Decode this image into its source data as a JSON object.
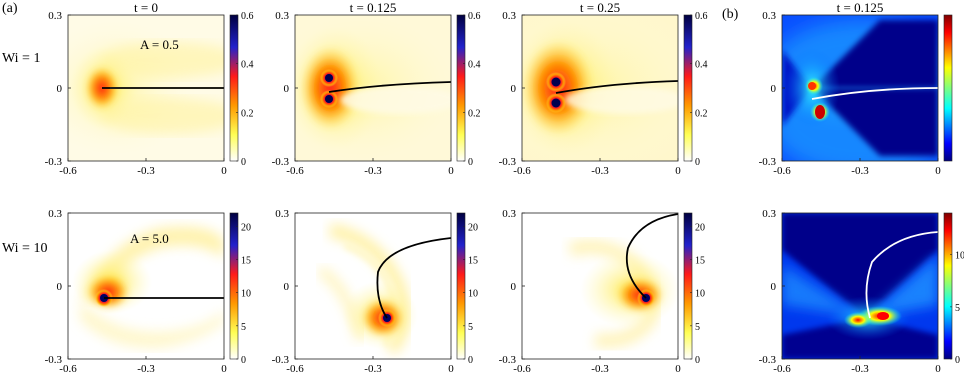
{
  "figure": {
    "panel_a_label": "(a)",
    "panel_b_label": "(b)",
    "row_labels": [
      "Wi = 1",
      "Wi = 10"
    ],
    "titles": [
      "t = 0",
      "t = 0.125",
      "t = 0.25",
      "t = 0.125"
    ],
    "amplitude_labels": [
      "A = 0.5",
      "A = 5.0"
    ]
  },
  "chart_data": [
    {
      "type": "heatmap",
      "title": "t = 0",
      "row": "Wi = 1",
      "annotation": "A = 0.5",
      "xlim": [
        -0.6,
        0
      ],
      "ylim": [
        -0.3,
        0.3
      ],
      "xticks": [
        "-0.6",
        "-0.3",
        "0"
      ],
      "yticks": [
        "0.3",
        "0",
        "-0.3"
      ],
      "colorbar": {
        "range": [
          0,
          0.6
        ],
        "ticks": [
          "0.6",
          "0.4",
          "0.2",
          "0"
        ],
        "colormap": "white-yellow-orange-red-blue-black"
      },
      "peak": [
        -0.5,
        0.0
      ],
      "filament": "straight"
    },
    {
      "type": "heatmap",
      "title": "t = 0.125",
      "row": "Wi = 1",
      "xlim": [
        -0.6,
        0
      ],
      "ylim": [
        -0.3,
        0.3
      ],
      "xticks": [
        "-0.6",
        "-0.3",
        "0"
      ],
      "yticks": [
        "0.3",
        "0",
        "-0.3"
      ],
      "colorbar": {
        "range": [
          0,
          0.6
        ],
        "ticks": [
          "0.6",
          "0.4",
          "0.2",
          "0"
        ],
        "colormap": "white-yellow-orange-red-blue-black"
      },
      "peaks": [
        [
          -0.5,
          0.04
        ],
        [
          -0.5,
          -0.04
        ]
      ],
      "filament": "slightly bent"
    },
    {
      "type": "heatmap",
      "title": "t = 0.25",
      "row": "Wi = 1",
      "xlim": [
        -0.6,
        0
      ],
      "ylim": [
        -0.3,
        0.3
      ],
      "xticks": [
        "-0.6",
        "-0.3",
        "0"
      ],
      "yticks": [
        "0.3",
        "0",
        "-0.3"
      ],
      "colorbar": {
        "range": [
          0,
          0.6
        ],
        "ticks": [
          "0.6",
          "0.4",
          "0.2",
          "0"
        ],
        "colormap": "white-yellow-orange-red-blue-black"
      },
      "peaks": [
        [
          -0.5,
          0.04
        ],
        [
          -0.5,
          -0.04
        ]
      ],
      "filament": "slightly bent"
    },
    {
      "type": "heatmap",
      "title": "t = 0.125",
      "row": "Wi = 1",
      "panel": "(b)",
      "xlim": [
        -0.6,
        0
      ],
      "ylim": [
        -0.3,
        0.3
      ],
      "xticks": [
        "-0.6",
        "-0.3",
        "0"
      ],
      "yticks": [
        "0.3",
        "0",
        "-0.3"
      ],
      "colorbar": {
        "colormap": "jet",
        "ticks": []
      },
      "filament": "slightly bent"
    },
    {
      "type": "heatmap",
      "title": "",
      "row": "Wi = 10",
      "annotation": "A = 5.0",
      "xlim": [
        -0.6,
        0
      ],
      "ylim": [
        -0.3,
        0.3
      ],
      "xticks": [
        "-0.6",
        "-0.3",
        "0"
      ],
      "yticks": [
        "0.3",
        "0",
        "-0.3"
      ],
      "colorbar": {
        "range": [
          0,
          22
        ],
        "ticks": [
          "20",
          "15",
          "10",
          "5",
          "0"
        ],
        "colormap": "white-yellow-orange-red-blue-black"
      },
      "peak": [
        -0.5,
        0.0
      ],
      "filament": "straight"
    },
    {
      "type": "heatmap",
      "title": "",
      "row": "Wi = 10",
      "xlim": [
        -0.6,
        0
      ],
      "ylim": [
        -0.3,
        0.3
      ],
      "xticks": [
        "-0.6",
        "-0.3",
        "0"
      ],
      "yticks": [
        "0.3",
        "0",
        "-0.3"
      ],
      "colorbar": {
        "range": [
          0,
          22
        ],
        "ticks": [
          "20",
          "15",
          "10",
          "5",
          "0"
        ],
        "colormap": "white-yellow-orange-red-blue-black"
      },
      "peak": [
        -0.26,
        -0.2
      ],
      "filament": "curved"
    },
    {
      "type": "heatmap",
      "title": "",
      "row": "Wi = 10",
      "xlim": [
        -0.6,
        0
      ],
      "ylim": [
        -0.3,
        0.3
      ],
      "xticks": [
        "-0.6",
        "-0.3",
        "0"
      ],
      "yticks": [
        "0.3",
        "0",
        "-0.3"
      ],
      "colorbar": {
        "range": [
          0,
          22
        ],
        "ticks": [
          "20",
          "15",
          "10",
          "5",
          "0"
        ],
        "colormap": "white-yellow-orange-red-blue-black"
      },
      "peak": [
        -0.15,
        -0.08
      ],
      "filament": "strongly curved"
    },
    {
      "type": "heatmap",
      "title": "",
      "row": "Wi = 10",
      "panel": "(b)",
      "xlim": [
        -0.6,
        0
      ],
      "ylim": [
        -0.3,
        0.3
      ],
      "xticks": [
        "-0.6",
        "-0.3",
        "0"
      ],
      "yticks": [
        "0.3",
        "0",
        "-0.3"
      ],
      "colorbar": {
        "range": [
          0,
          14
        ],
        "ticks": [
          "10",
          "5",
          "0"
        ],
        "colormap": "jet"
      },
      "filament": "curved"
    }
  ]
}
